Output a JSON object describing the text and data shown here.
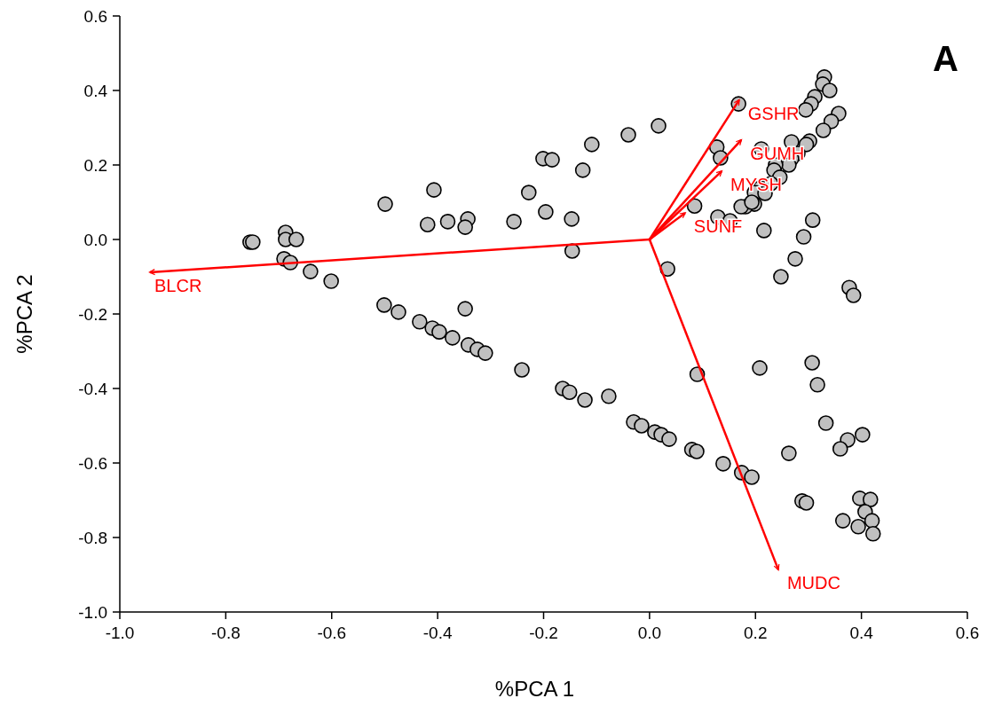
{
  "chart_data": {
    "type": "scatter",
    "xlabel": "%PCA 1",
    "ylabel": "%PCA 2",
    "annotations": [
      "A"
    ],
    "xlim": [
      -1.0,
      0.6
    ],
    "ylim": [
      -1.0,
      0.6
    ],
    "xticks": [
      {
        "value": -1.0,
        "label": "-1.0"
      },
      {
        "value": -0.8,
        "label": "-0.8"
      },
      {
        "value": -0.6,
        "label": "-0.6"
      },
      {
        "value": -0.4,
        "label": "-0.4"
      },
      {
        "value": -0.2,
        "label": "-0.2"
      },
      {
        "value": 0,
        "label": "0.0"
      },
      {
        "value": 0.2,
        "label": "0.2"
      },
      {
        "value": 0.4,
        "label": "0.4"
      },
      {
        "value": 0.6,
        "label": "0.6"
      }
    ],
    "yticks": [
      {
        "value": -1.0,
        "label": "-1.0"
      },
      {
        "value": -0.8,
        "label": "-0.8"
      },
      {
        "value": -0.6,
        "label": "-0.6"
      },
      {
        "value": -0.4,
        "label": "-0.4"
      },
      {
        "value": -0.2,
        "label": "-0.2"
      },
      {
        "value": 0,
        "label": "0.0"
      },
      {
        "value": 0.2,
        "label": "0.2"
      },
      {
        "value": 0.4,
        "label": "0.4"
      },
      {
        "value": 0.6,
        "label": "0.6"
      }
    ],
    "grid": false,
    "legend": false,
    "series": [
      {
        "marker": "circle",
        "color": "#c0c0c0",
        "x": [
          -0.754,
          -0.749,
          -0.687,
          -0.687,
          -0.667,
          -0.69,
          -0.678,
          -0.64,
          -0.601,
          -0.499,
          -0.407,
          -0.419,
          -0.381,
          -0.343,
          -0.348,
          -0.256,
          -0.201,
          -0.184,
          -0.228,
          -0.196,
          -0.147,
          -0.146,
          -0.501,
          -0.474,
          -0.434,
          -0.41,
          -0.397,
          -0.372,
          -0.342,
          -0.325,
          -0.31,
          -0.348,
          -0.241,
          -0.164,
          -0.151,
          0.168,
          0.017,
          -0.04,
          -0.109,
          -0.126,
          0.034,
          0.085,
          0.129,
          0.152,
          0.127,
          0.134,
          0.211,
          0.216,
          0.308,
          0.291,
          0.275,
          0.248,
          0.377,
          0.385,
          0.33,
          0.327,
          0.34,
          0.312,
          0.305,
          0.295,
          0.357,
          0.343,
          0.328,
          0.302,
          0.296,
          0.268,
          0.28,
          0.268,
          0.263,
          0.238,
          0.235,
          0.246,
          0.229,
          0.209,
          0.198,
          0.218,
          0.198,
          0.181,
          0.173,
          0.193,
          0.09,
          0.208,
          0.307,
          0.317,
          -0.122,
          -0.077,
          -0.03,
          -0.015,
          0.01,
          0.022,
          0.037,
          0.08,
          0.089,
          0.139,
          0.174,
          0.193,
          0.263,
          0.333,
          0.402,
          0.374,
          0.36,
          0.288,
          0.296,
          0.397,
          0.417,
          0.407,
          0.365,
          0.42,
          0.394,
          0.422
        ],
        "values": [
          -0.007,
          -0.007,
          0.019,
          0.0,
          0.0,
          -0.052,
          -0.062,
          -0.086,
          -0.112,
          0.095,
          0.133,
          0.04,
          0.048,
          0.055,
          0.033,
          0.048,
          0.217,
          0.214,
          0.126,
          0.074,
          0.055,
          -0.031,
          -0.176,
          -0.195,
          -0.221,
          -0.238,
          -0.248,
          -0.264,
          -0.283,
          -0.295,
          -0.305,
          -0.186,
          -0.35,
          -0.4,
          -0.41,
          0.364,
          0.305,
          0.281,
          0.255,
          0.186,
          -0.079,
          0.09,
          0.06,
          0.05,
          0.248,
          0.219,
          0.243,
          0.024,
          0.052,
          0.007,
          -0.052,
          -0.1,
          -0.129,
          -0.15,
          0.436,
          0.417,
          0.4,
          0.383,
          0.364,
          0.348,
          0.338,
          0.317,
          0.293,
          0.264,
          0.255,
          0.262,
          0.231,
          0.217,
          0.2,
          0.2,
          0.186,
          0.167,
          0.15,
          0.138,
          0.126,
          0.124,
          0.095,
          0.088,
          0.088,
          0.1,
          -0.362,
          -0.345,
          -0.331,
          -0.39,
          -0.431,
          -0.421,
          -0.49,
          -0.5,
          -0.517,
          -0.524,
          -0.536,
          -0.564,
          -0.569,
          -0.602,
          -0.626,
          -0.638,
          -0.574,
          -0.493,
          -0.524,
          -0.538,
          -0.562,
          -0.702,
          -0.707,
          -0.695,
          -0.698,
          -0.731,
          -0.755,
          -0.755,
          -0.771,
          -0.79
        ]
      },
      {
        "type": "line",
        "marker": "none",
        "name": "GSHR",
        "color": "#ff0000",
        "x": [
          0,
          0.169
        ],
        "values": [
          0,
          0.374
        ]
      },
      {
        "type": "line",
        "marker": "none",
        "name": "GUMH",
        "color": "#ff0000",
        "x": [
          0,
          0.173
        ],
        "values": [
          0,
          0.267
        ]
      },
      {
        "type": "line",
        "marker": "none",
        "name": "MYSH",
        "color": "#ff0000",
        "x": [
          0,
          0.136
        ],
        "values": [
          0,
          0.183
        ]
      },
      {
        "type": "line",
        "marker": "none",
        "name": "SUNF",
        "color": "#ff0000",
        "x": [
          0,
          0.067
        ],
        "values": [
          0,
          0.071
        ]
      },
      {
        "type": "line",
        "marker": "none",
        "name": "BLCR",
        "color": "#ff0000",
        "x": [
          0,
          -0.943
        ],
        "values": [
          0,
          -0.088
        ]
      },
      {
        "type": "line",
        "marker": "none",
        "name": "MUDC",
        "color": "#ff0000",
        "x": [
          0,
          0.243
        ],
        "values": [
          0,
          -0.886
        ]
      }
    ]
  }
}
